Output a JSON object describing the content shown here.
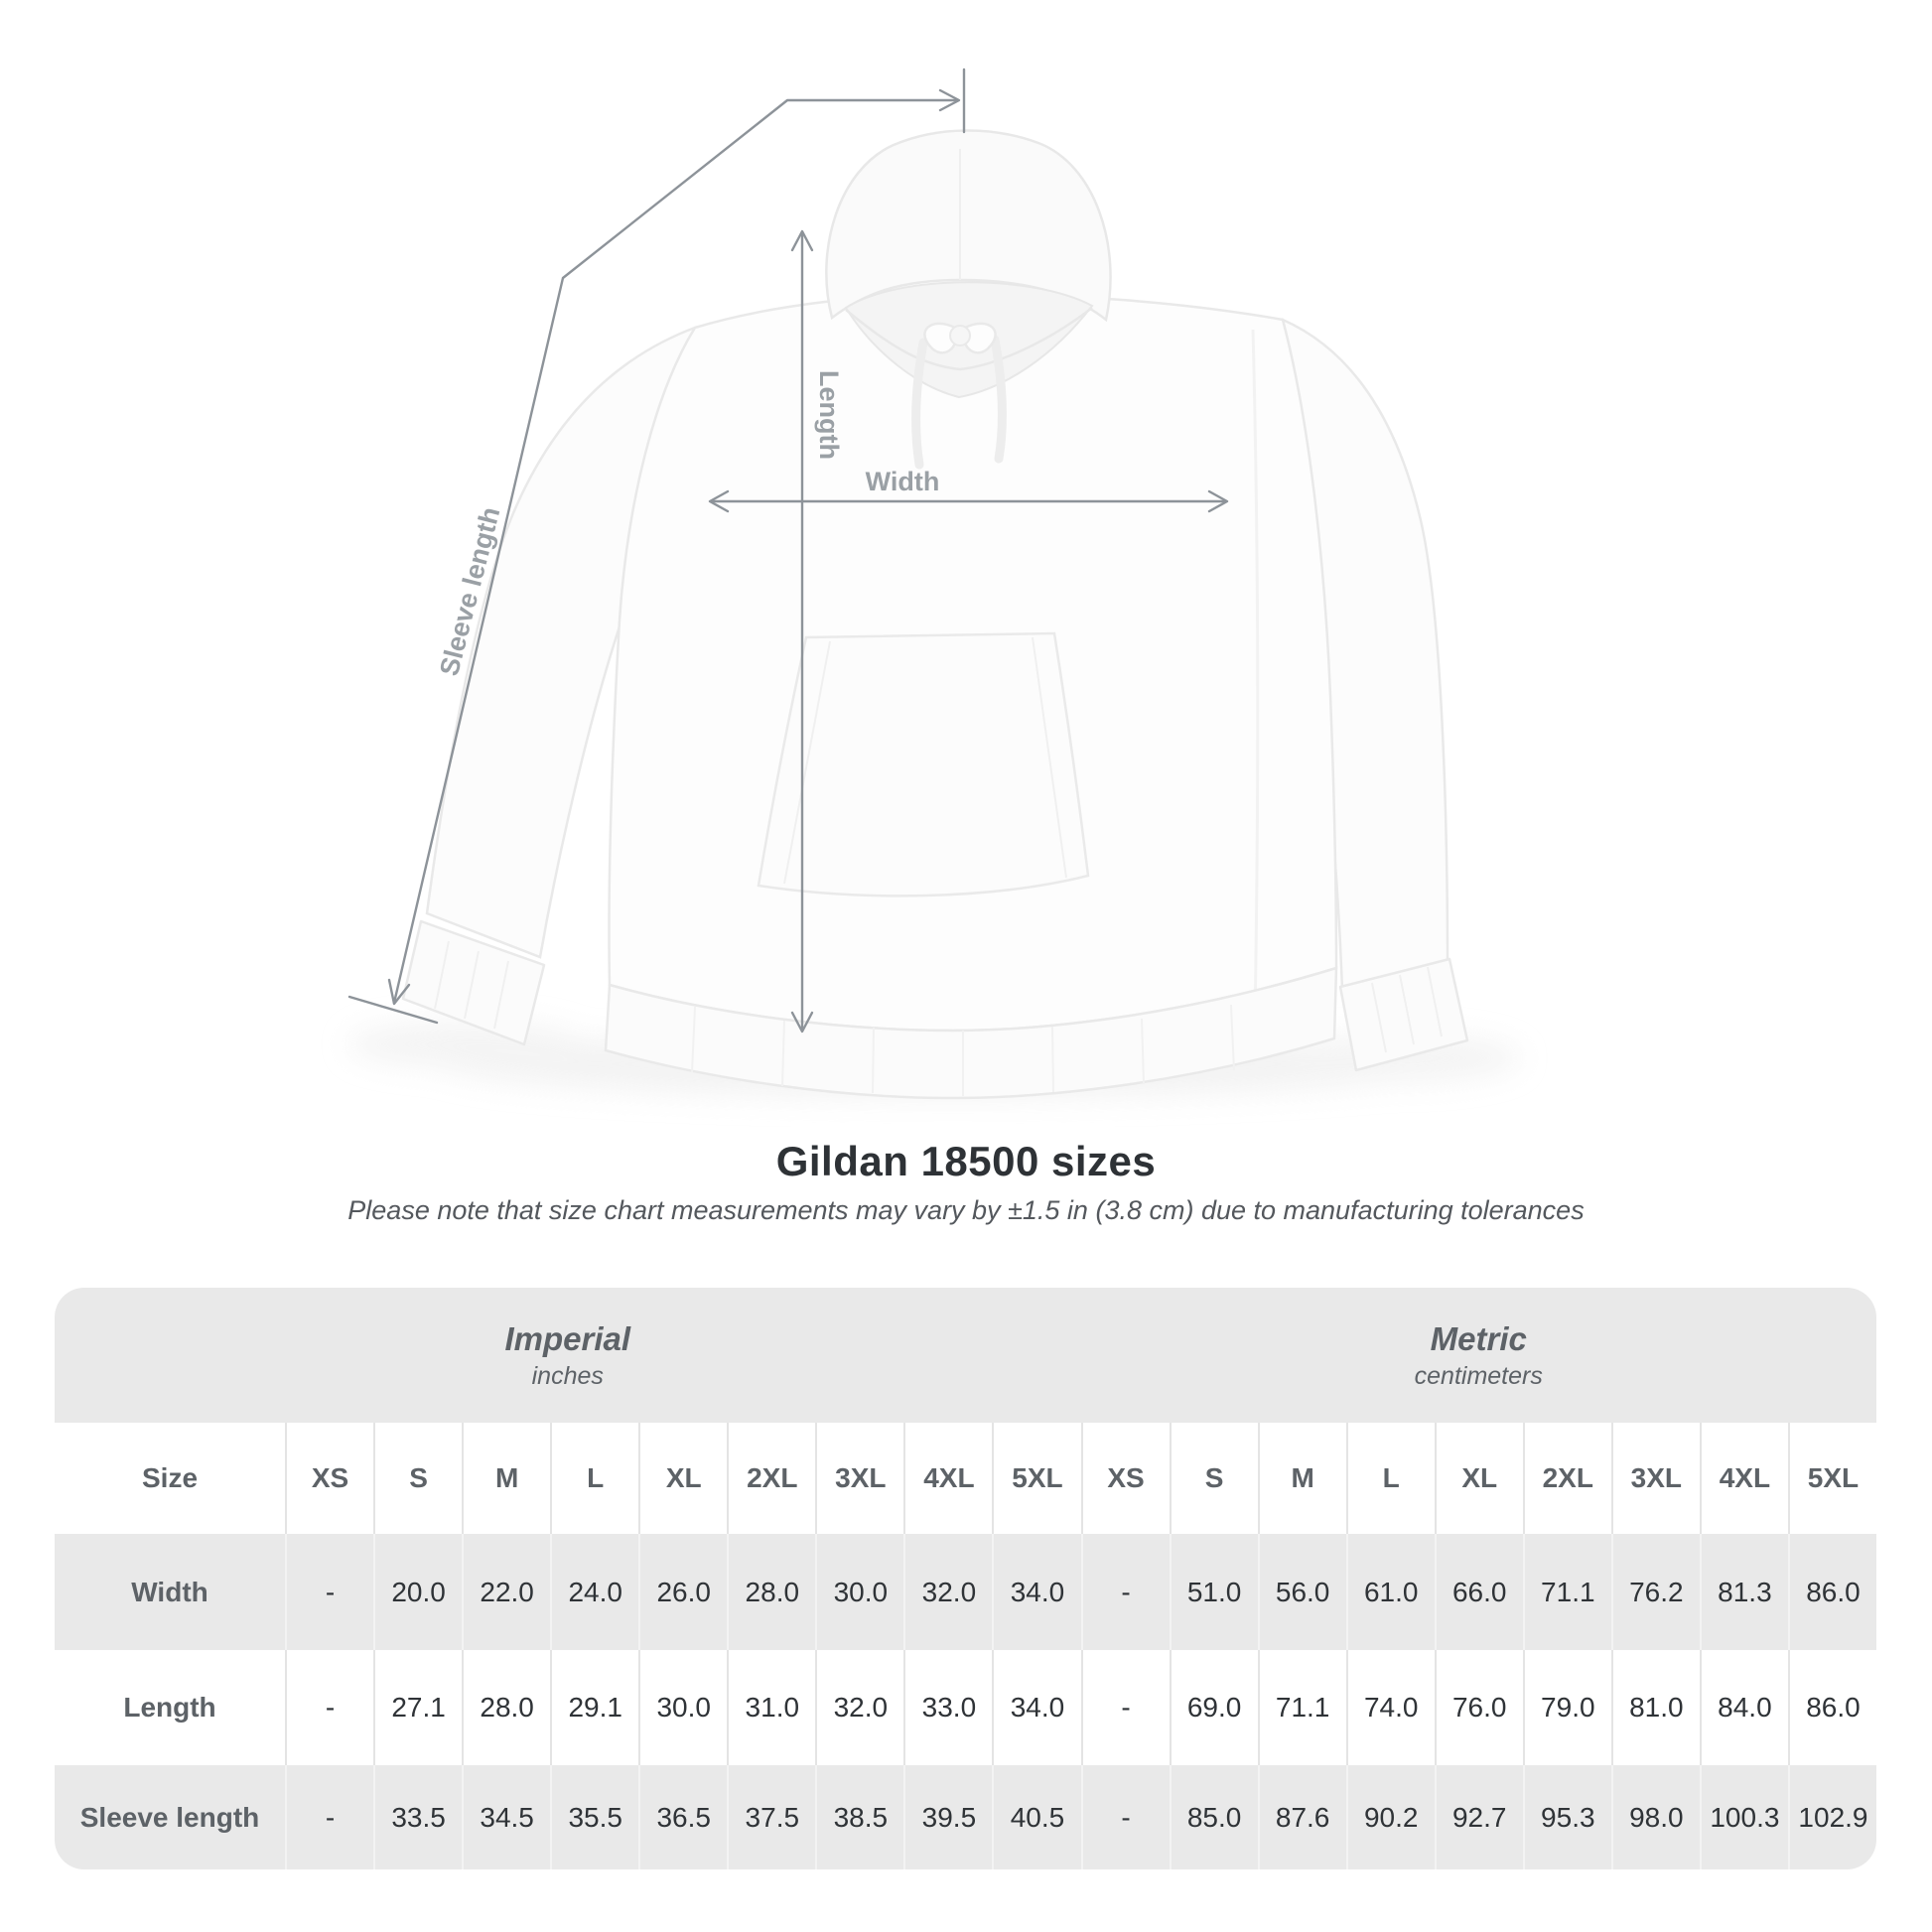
{
  "title": "Gildan 18500 sizes",
  "subtitle": "Please note that size chart measurements may vary by ±1.5 in (3.8 cm) due to manufacturing tolerances",
  "diagram": {
    "product": "white pullover hoodie flat lay",
    "length_label": "Length",
    "width_label": "Width",
    "sleeve_label": "Sleeve length"
  },
  "table": {
    "size_header": "Size",
    "groups": [
      {
        "name": "Imperial",
        "unit": "inches"
      },
      {
        "name": "Metric",
        "unit": "centimeters"
      }
    ],
    "sizes": [
      "XS",
      "S",
      "M",
      "L",
      "XL",
      "2XL",
      "3XL",
      "4XL",
      "5XL"
    ],
    "rows": [
      {
        "label": "Width",
        "imperial": [
          "-",
          "20.0",
          "22.0",
          "24.0",
          "26.0",
          "28.0",
          "30.0",
          "32.0",
          "34.0"
        ],
        "metric": [
          "-",
          "51.0",
          "56.0",
          "61.0",
          "66.0",
          "71.1",
          "76.2",
          "81.3",
          "86.0"
        ]
      },
      {
        "label": "Length",
        "imperial": [
          "-",
          "27.1",
          "28.0",
          "29.1",
          "30.0",
          "31.0",
          "32.0",
          "33.0",
          "34.0"
        ],
        "metric": [
          "-",
          "69.0",
          "71.1",
          "74.0",
          "76.0",
          "79.0",
          "81.0",
          "84.0",
          "86.0"
        ]
      },
      {
        "label": "Sleeve length",
        "imperial": [
          "-",
          "33.5",
          "34.5",
          "35.5",
          "36.5",
          "37.5",
          "38.5",
          "39.5",
          "40.5"
        ],
        "metric": [
          "-",
          "85.0",
          "87.6",
          "90.2",
          "92.7",
          "95.3",
          "98.0",
          "100.3",
          "102.9"
        ]
      }
    ]
  },
  "colors": {
    "arrow_gray": "#8d9399",
    "label_gray": "#9aa0a5",
    "table_band_gray": "#e9e9e9",
    "heading_text": "#2e3236",
    "muted_text": "#5d6267",
    "value_text": "#2f3337"
  }
}
